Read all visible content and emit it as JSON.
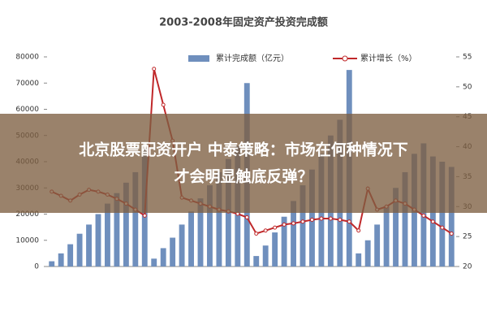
{
  "chart_data": {
    "type": "bar_line",
    "title": "2003-2008年固定资产投资完成额",
    "categories": [
      null,
      null,
      null,
      null,
      null,
      null,
      null,
      null,
      null,
      null,
      null,
      null,
      null,
      null,
      null,
      null,
      null,
      null,
      null,
      null,
      null,
      null,
      null,
      null,
      null,
      null,
      null,
      null,
      null,
      null,
      null,
      null,
      null,
      null,
      null,
      null,
      null,
      null,
      null,
      null,
      null,
      null,
      null,
      null
    ],
    "series": [
      {
        "name": "累计完成额（亿元）",
        "color": "#6f8fbd",
        "values": [
          2000,
          5000,
          8500,
          12500,
          16000,
          20000,
          24000,
          28000,
          32000,
          36000,
          45000,
          3000,
          7000,
          11000,
          16000,
          21000,
          26000,
          31000,
          36000,
          41000,
          46000,
          70000,
          4000,
          8000,
          13000,
          19000,
          25000,
          31000,
          37000,
          43000,
          50000,
          56000,
          75000,
          5000,
          10000,
          16000,
          23000,
          30000,
          36000,
          43000,
          47000,
          42000,
          40000,
          38000
        ]
      },
      {
        "name": "累计增长（%）",
        "color": "#c0282a",
        "axis": "y2",
        "values": [
          32.5,
          31.8,
          31,
          32,
          32.8,
          32.5,
          32,
          31.3,
          30.5,
          29.5,
          28.5,
          53,
          47,
          41,
          31.5,
          31,
          30.5,
          30,
          29.5,
          29.2,
          28.8,
          28.2,
          25.5,
          26,
          26.5,
          27,
          27.2,
          27.5,
          27.8,
          28,
          28,
          27.8,
          27.5,
          26,
          33,
          29.5,
          30,
          31,
          30.5,
          29.5,
          28.5,
          27.5,
          26.5,
          25.5
        ]
      }
    ],
    "ylim": [
      0,
      80000
    ],
    "yticks": [
      0,
      10000,
      20000,
      30000,
      40000,
      50000,
      60000,
      70000,
      80000
    ],
    "y2lim": [
      20,
      55
    ],
    "y2ticks": [
      20,
      25,
      30,
      35,
      40,
      45,
      50,
      55
    ]
  },
  "headline": [
    "北京股票配资开户 中泰策略：市场在何种情况下",
    "才会明显触底反弹？"
  ]
}
